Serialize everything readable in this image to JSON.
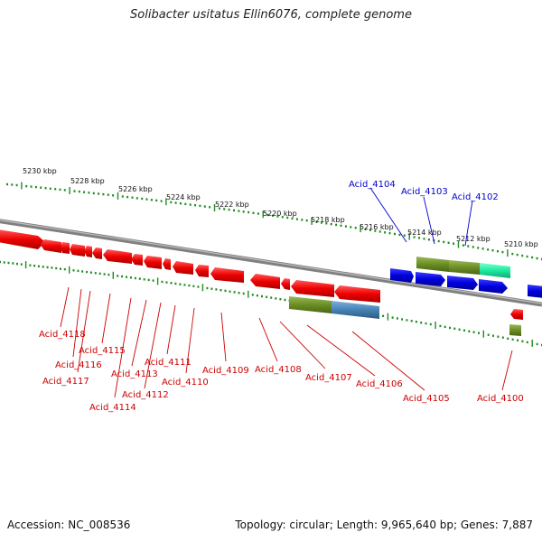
{
  "title": "Solibacter usitatus Ellin6076, complete genome",
  "footer": {
    "accession": "Accession: NC_008536",
    "summary": "Topology: circular; Length: 9,965,640 bp; Genes: 7,887"
  },
  "scale_labels": [
    "5230 kbp",
    "5228 kbp",
    "5226 kbp",
    "5224 kbp",
    "5222 kbp",
    "5220 kbp",
    "5218 kbp",
    "5216 kbp",
    "5214 kbp",
    "5212 kbp",
    "5210 kbp"
  ],
  "genes_top": [
    "Acid_4104",
    "Acid_4103",
    "Acid_4102"
  ],
  "genes_bottom": [
    "Acid_4118",
    "Acid_4115",
    "Acid_4116",
    "Acid_4117",
    "Acid_4113",
    "Acid_4114",
    "Acid_4112",
    "Acid_4111",
    "Acid_4110",
    "Acid_4109",
    "Acid_4108",
    "Acid_4107",
    "Acid_4106",
    "Acid_4105",
    "Acid_4100"
  ],
  "colors": {
    "forward_gene": "#0000dd",
    "reverse_gene": "#ee0000",
    "domain_green": "#6b8e23",
    "domain_teal": "#1de9a0",
    "domain_blue": "#4682b4",
    "backbone": "#808080",
    "ticks": "#228b22",
    "top_label": "#0000cc",
    "bottom_label": "#cc0000"
  }
}
